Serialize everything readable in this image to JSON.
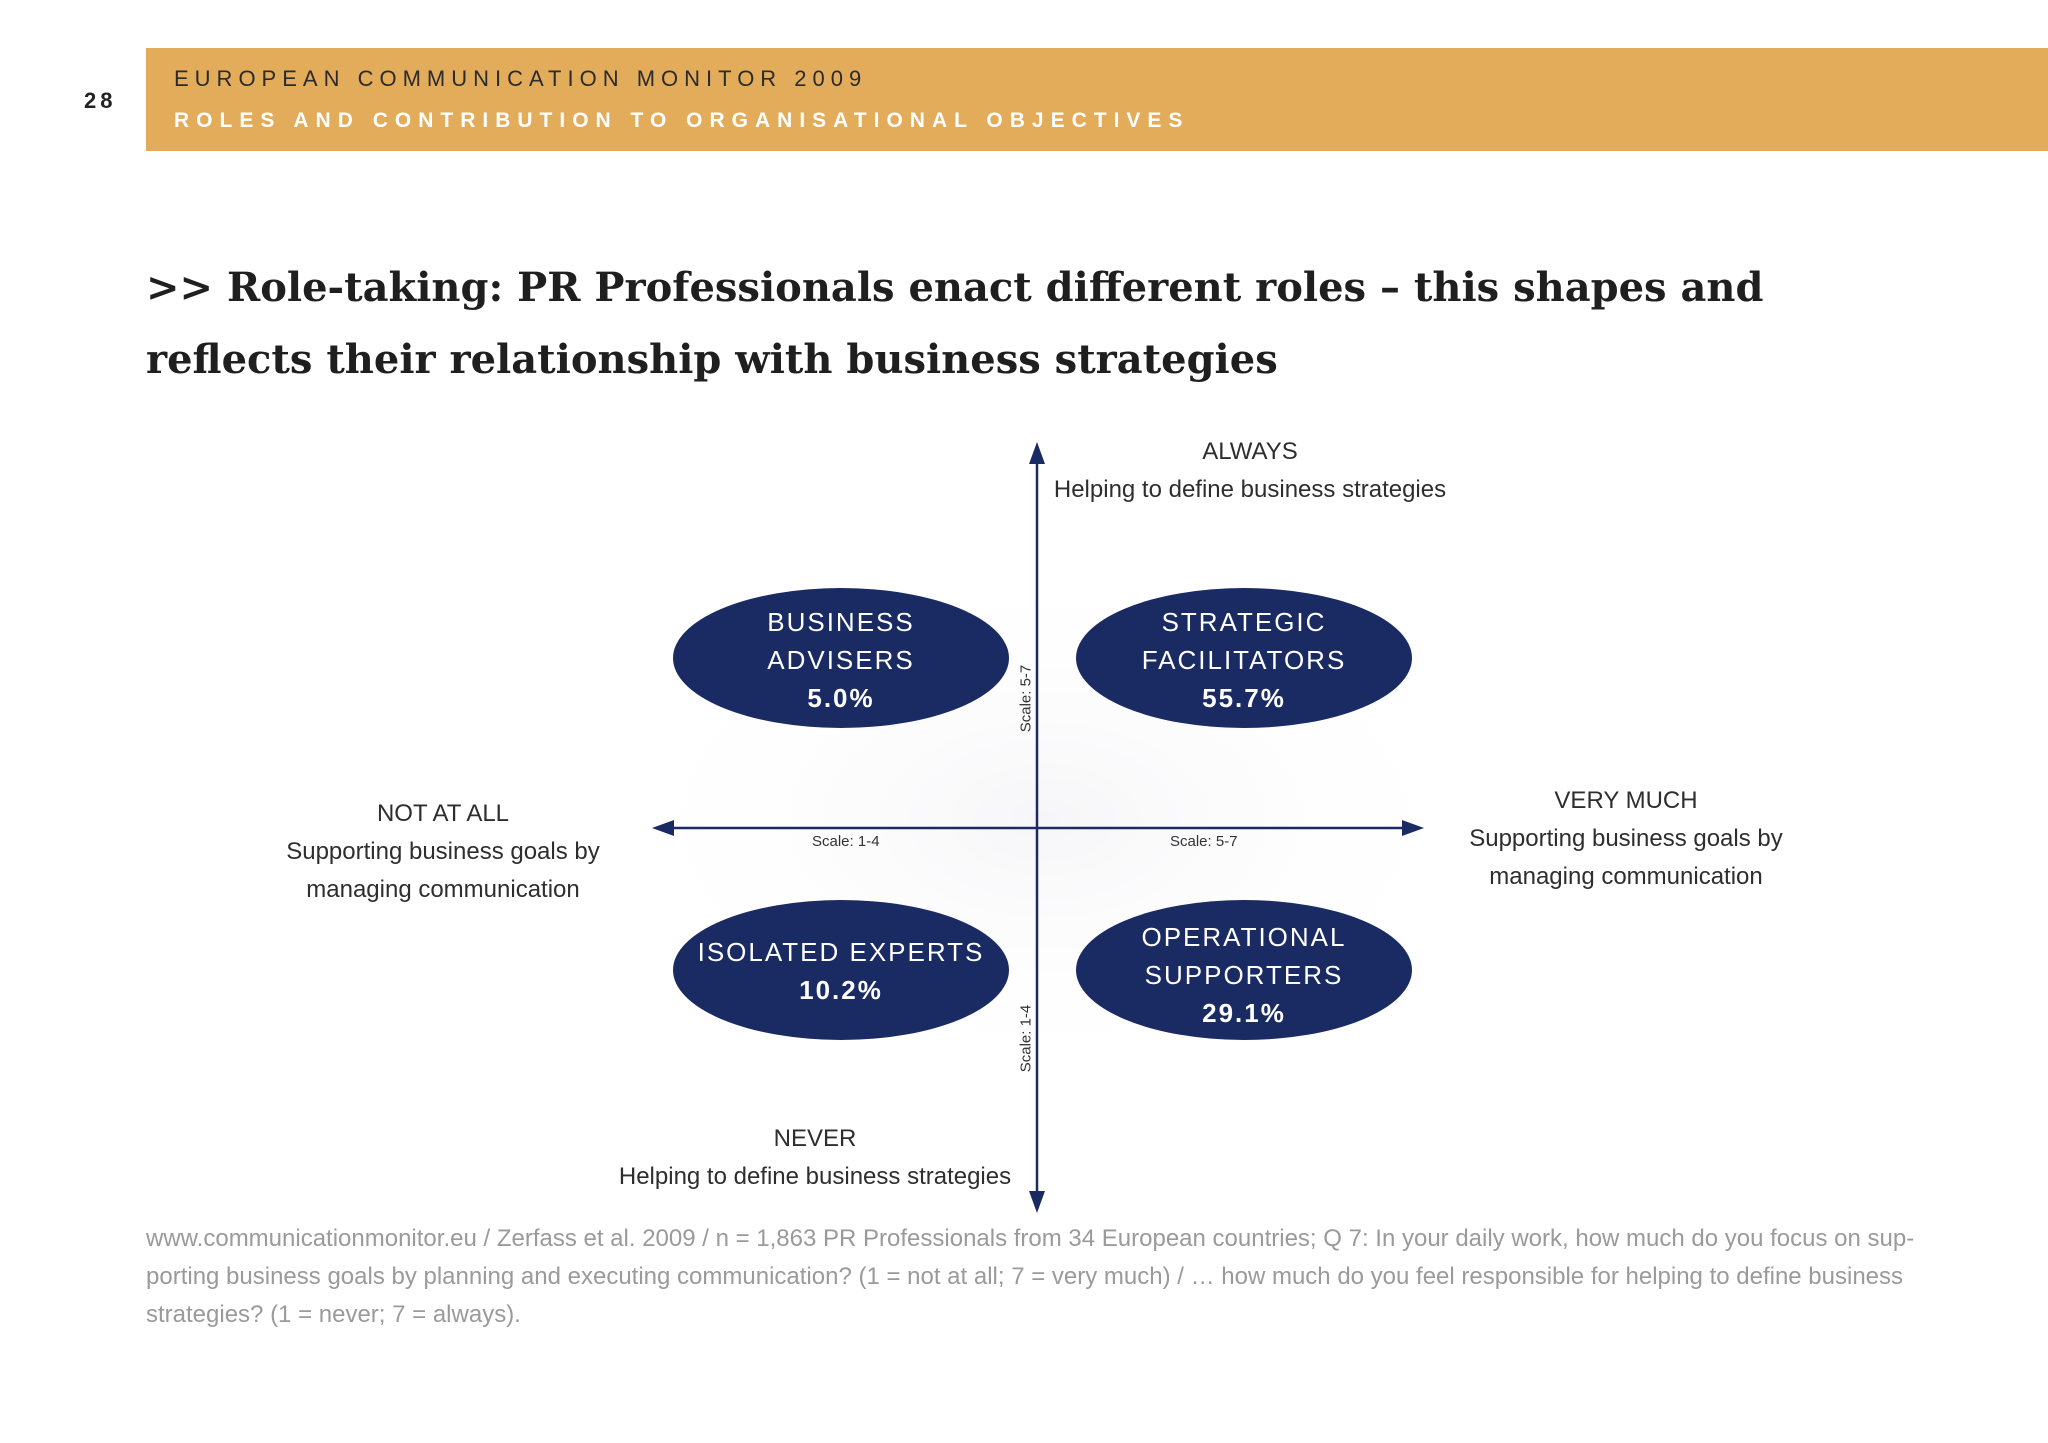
{
  "page_number": "28",
  "header": {
    "line1": "EUROPEAN COMMUNICATION MONITOR 2009",
    "line2": "ROLES AND CONTRIBUTION TO ORGANISATIONAL OBJECTIVES"
  },
  "title": ">> Role-taking: PR Professionals enact different roles – this shapes and reflects their relationship with business strategies",
  "colors": {
    "header_band": "#e2ac5a",
    "ellipse": "#1a2a63",
    "axis": "#1a2a63"
  },
  "diagram": {
    "top_label": {
      "line1": "ALWAYS",
      "line2": "Helping to define business strategies"
    },
    "bottom_label": {
      "line1": "NEVER",
      "line2": "Helping to define business strategies"
    },
    "left_label": {
      "line1": "NOT AT ALL",
      "line2": "Supporting business goals by",
      "line3": "managing communication"
    },
    "right_label": {
      "line1": "VERY MUCH",
      "line2": "Supporting business goals by",
      "line3": "managing communication"
    },
    "scales": {
      "x_left": "Scale: 1-4",
      "x_right": "Scale: 5-7",
      "y_top": "Scale: 5-7",
      "y_bottom": "Scale: 1-4"
    },
    "quadrants": {
      "top_left": {
        "name1": "BUSINESS",
        "name2": "ADVISERS",
        "value": "5.0%"
      },
      "top_right": {
        "name1": "STRATEGIC",
        "name2": "FACILITATORS",
        "value": "55.7%"
      },
      "bottom_left": {
        "name1": "ISOLATED EXPERTS",
        "value": "10.2%"
      },
      "bottom_right": {
        "name1": "OPERATIONAL",
        "name2": "SUPPORTERS",
        "value": "29.1%"
      }
    }
  },
  "footnote": "www.communicationmonitor.eu / Zerfass et al. 2009 / n = 1,863 PR Professionals from 34 European countries; Q 7: In your daily work, how much do you focus on sup-porting business goals by planning and executing communication? (1 = not at all; 7 = very much) / … how much do you feel responsible for helping to define business strategies? (1 = never; 7 = always)."
}
